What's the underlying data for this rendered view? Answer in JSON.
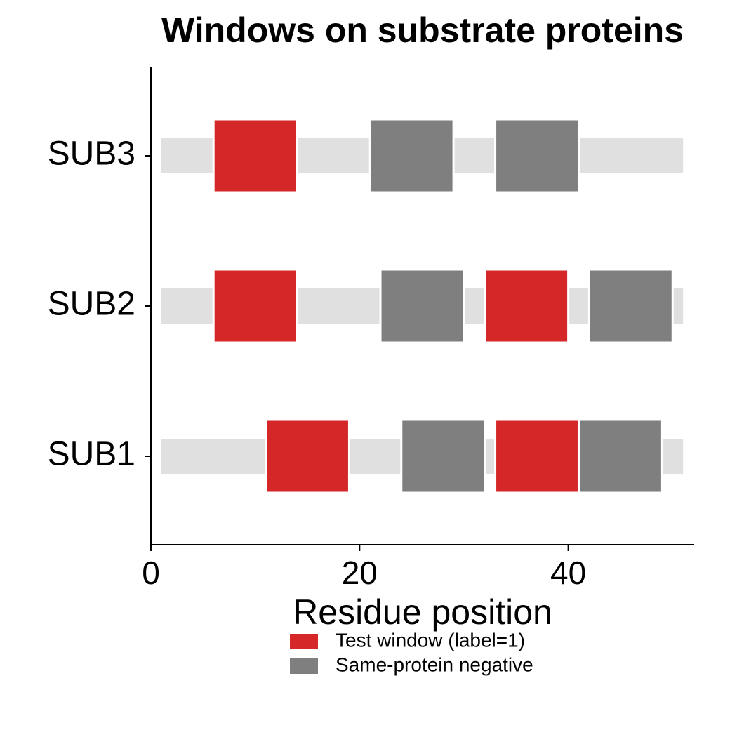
{
  "chart_data": {
    "type": "broken_barh",
    "title": "Windows on substrate proteins",
    "xlabel": "Residue position",
    "categories": [
      "SUB1",
      "SUB2",
      "SUB3"
    ],
    "xlim": [
      0,
      52
    ],
    "xticks": [
      0,
      20,
      40
    ],
    "background": {
      "color": "#e0e0e0",
      "spans": [
        [
          1,
          51
        ],
        [
          1,
          51
        ],
        [
          1,
          51
        ]
      ]
    },
    "series": [
      {
        "name": "Test window (label=1)",
        "color": "#d62728",
        "spans": [
          [
            [
              11,
              19
            ],
            [
              33,
              41
            ]
          ],
          [
            [
              6,
              14
            ],
            [
              32,
              40
            ]
          ],
          [
            [
              6,
              14
            ]
          ]
        ]
      },
      {
        "name": "Same-protein negative",
        "color": "#7f7f7f",
        "spans": [
          [
            [
              24,
              32
            ],
            [
              41,
              49
            ]
          ],
          [
            [
              22,
              30
            ],
            [
              42,
              50
            ]
          ],
          [
            [
              21,
              29
            ],
            [
              33,
              41
            ]
          ]
        ]
      }
    ]
  }
}
